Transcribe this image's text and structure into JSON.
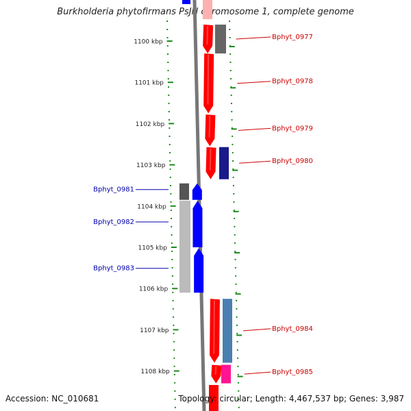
{
  "title": "Burkholderia phytofirmans PsJN chromosome 1, complete genome",
  "accession": "Accession: NC_010681",
  "topology": "Topology: circular; Length: 4,467,537 bp; Genes: 3,987",
  "colors": {
    "forward": "#ff0000",
    "reverse": "#0000ff",
    "backbone": "#777777",
    "tick": "#1a8a1a",
    "gray": "#666666",
    "steelblue": "#4a7fb0",
    "magenta": "#ff1493"
  },
  "axis": {
    "unit": "kbp",
    "ticks": [
      {
        "value": 1100,
        "label": "1100 kbp"
      },
      {
        "value": 1101,
        "label": "1101 kbp"
      },
      {
        "value": 1102,
        "label": "1102 kbp"
      },
      {
        "value": 1103,
        "label": "1103 kbp"
      },
      {
        "value": 1104,
        "label": "1104 kbp"
      },
      {
        "value": 1105,
        "label": "1105 kbp"
      },
      {
        "value": 1106,
        "label": "1106 kbp"
      },
      {
        "value": 1107,
        "label": "1107 kbp"
      },
      {
        "value": 1108,
        "label": "1108 kbp"
      }
    ]
  },
  "genes": [
    {
      "label": "Bphyt_0977",
      "strand": "+",
      "start_kbp": 1099.6,
      "end_kbp": 1100.3
    },
    {
      "label": "Bphyt_0978",
      "strand": "+",
      "start_kbp": 1100.3,
      "end_kbp": 1101.75
    },
    {
      "label": "Bphyt_0979",
      "strand": "+",
      "start_kbp": 1101.78,
      "end_kbp": 1102.55
    },
    {
      "label": "Bphyt_0980",
      "strand": "+",
      "start_kbp": 1102.57,
      "end_kbp": 1103.35
    },
    {
      "label": "Bphyt_0981",
      "strand": "-",
      "start_kbp": 1103.45,
      "end_kbp": 1103.85
    },
    {
      "label": "Bphyt_0982",
      "strand": "-",
      "start_kbp": 1103.87,
      "end_kbp": 1105.0
    },
    {
      "label": "Bphyt_0983",
      "strand": "-",
      "start_kbp": 1105.02,
      "end_kbp": 1106.1
    },
    {
      "label": "Bphyt_0984",
      "strand": "+",
      "start_kbp": 1106.25,
      "end_kbp": 1107.8
    },
    {
      "label": "Bphyt_0985",
      "strand": "+",
      "start_kbp": 1107.85,
      "end_kbp": 1108.3
    }
  ]
}
